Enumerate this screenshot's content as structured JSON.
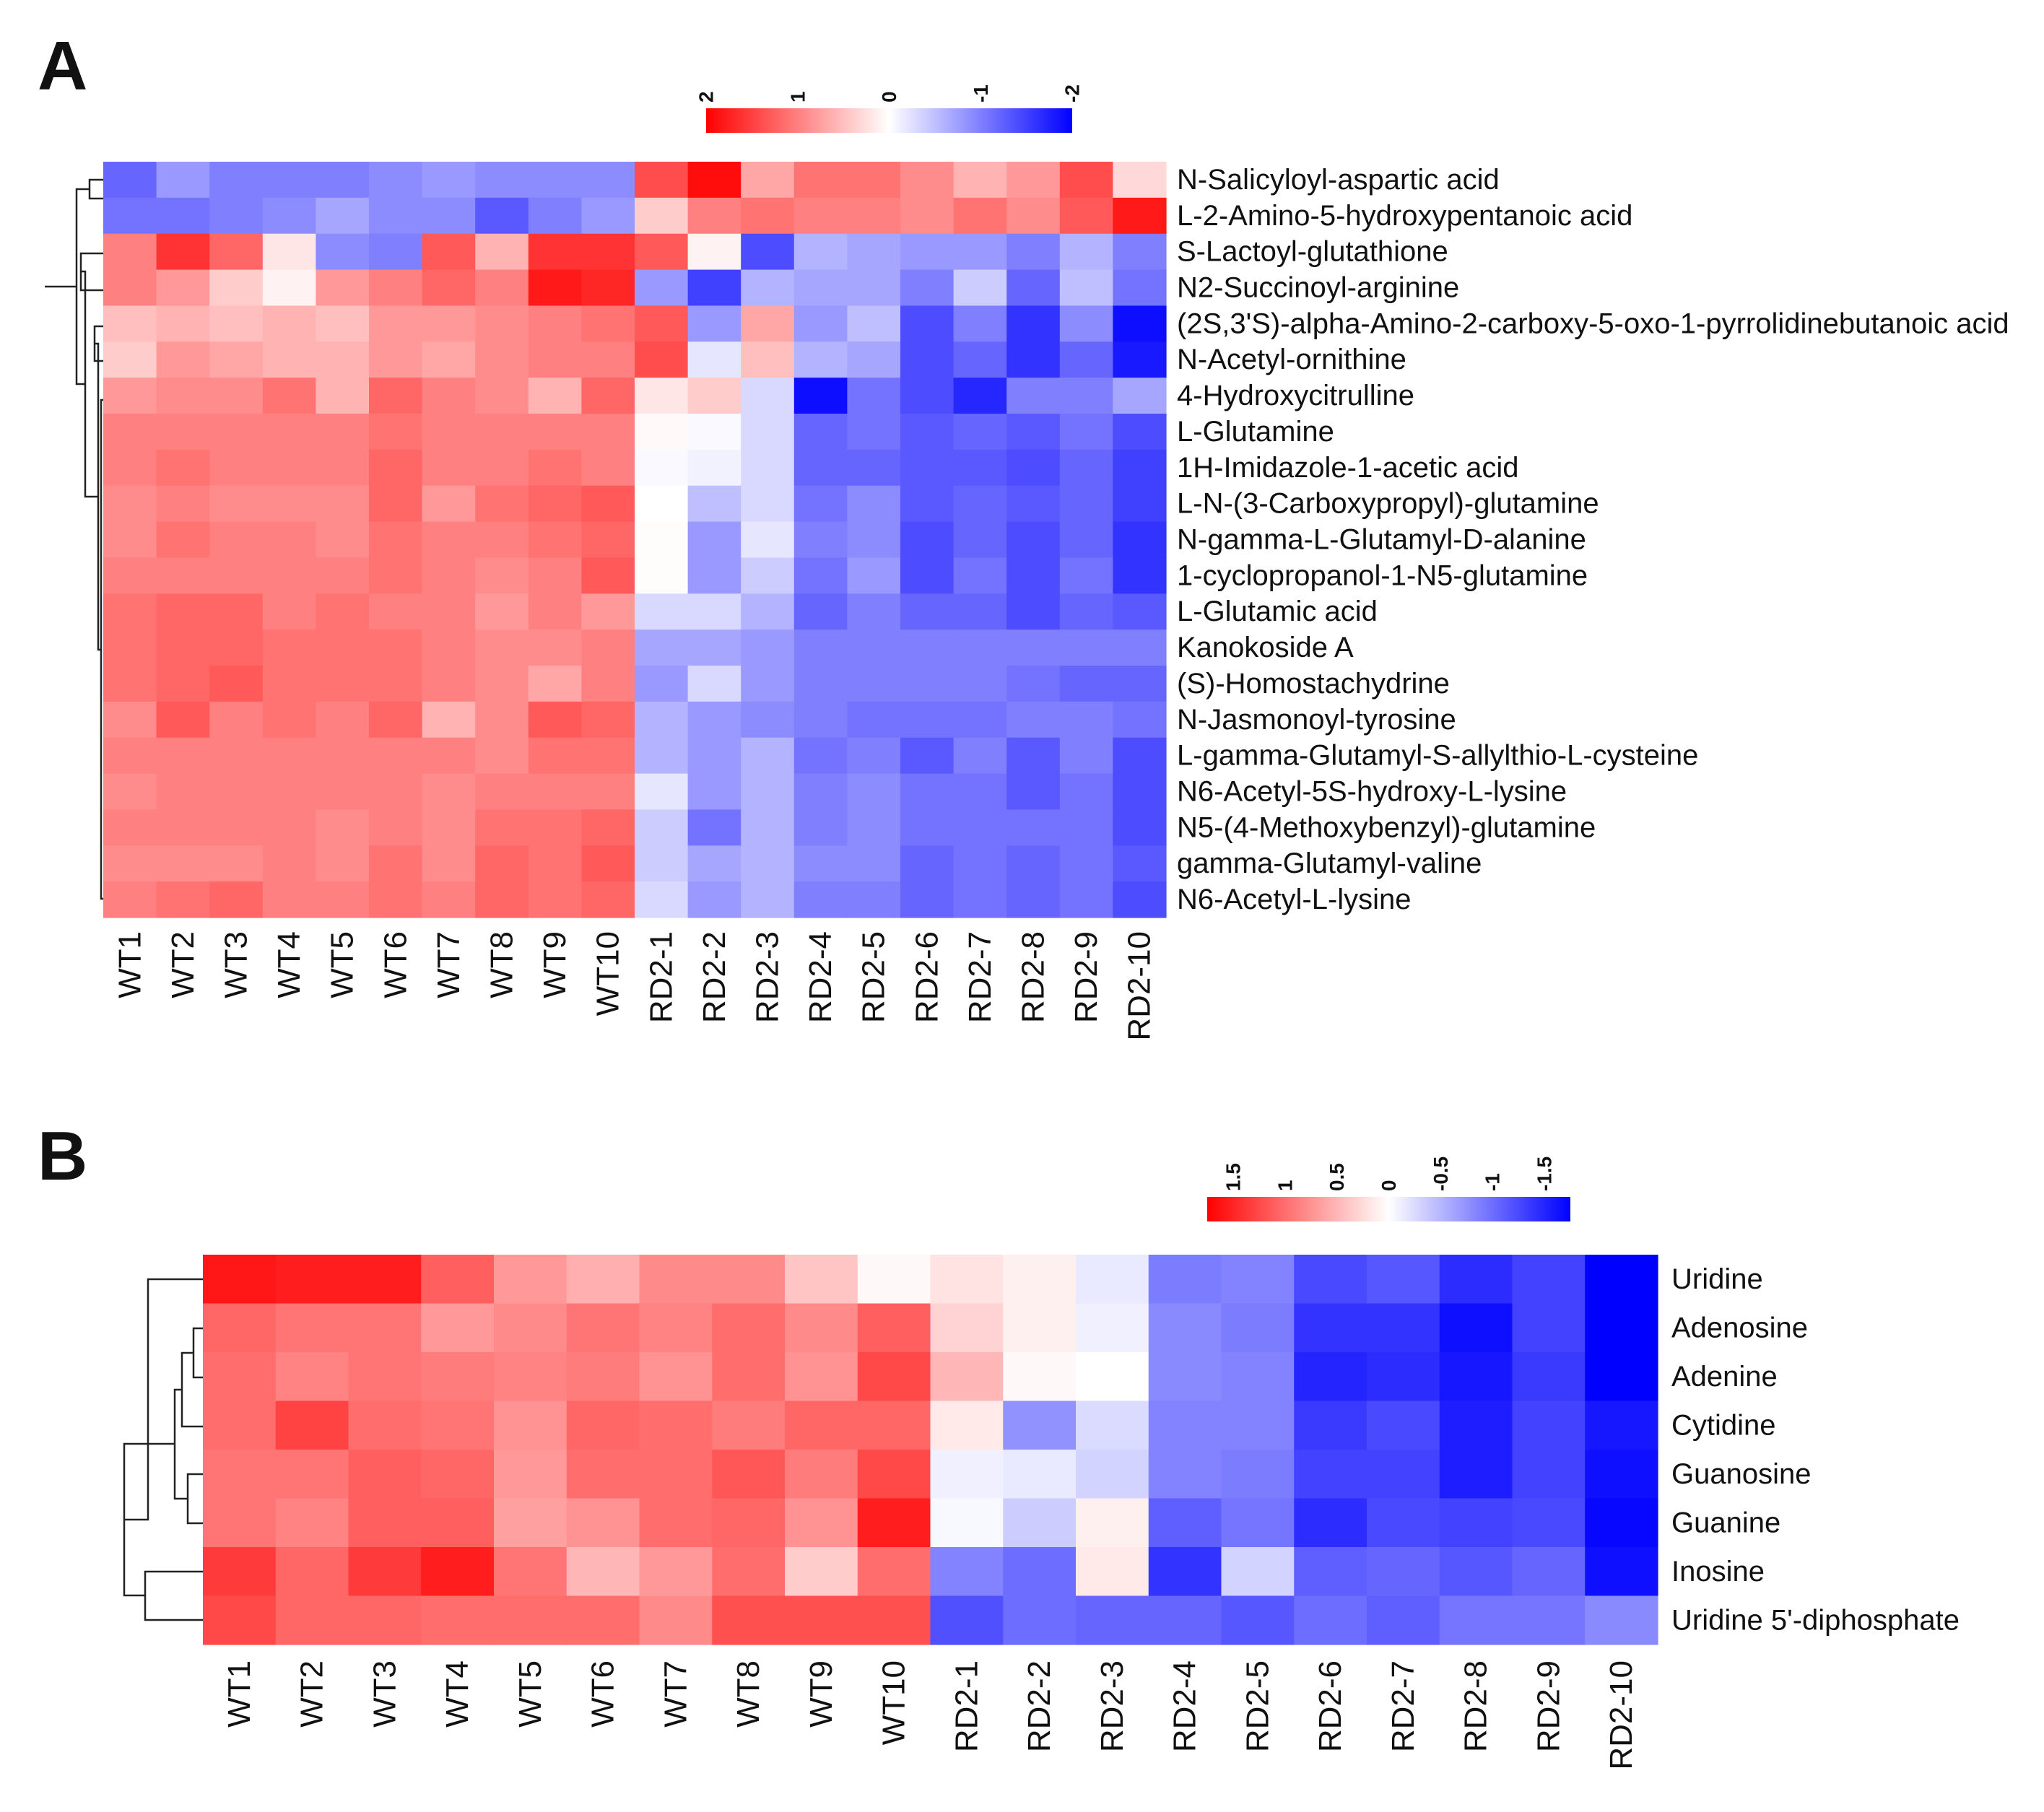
{
  "chart_data": [
    {
      "type": "heatmap",
      "panel": "A",
      "title": "",
      "xlabel": "",
      "ylabel": "",
      "color_scale": {
        "ticks": [
          "2",
          "1",
          "0",
          "-1",
          "-2"
        ],
        "range": [
          2,
          -2
        ],
        "colors": {
          "high": "#ff0000",
          "mid": "#ffffff",
          "low": "#0000ff"
        }
      },
      "columns": [
        "WT1",
        "WT2",
        "WT3",
        "WT4",
        "WT5",
        "WT6",
        "WT7",
        "WT8",
        "WT9",
        "WT10",
        "RD2-1",
        "RD2-2",
        "RD2-3",
        "RD2-4",
        "RD2-5",
        "RD2-6",
        "RD2-7",
        "RD2-8",
        "RD2-9",
        "RD2-10"
      ],
      "rows": [
        "N-Salicyloyl-aspartic acid",
        "L-2-Amino-5-hydroxypentanoic acid",
        "S-Lactoyl-glutathione",
        "N2-Succinoyl-arginine",
        "(2S,3'S)-alpha-Amino-2-carboxy-5-oxo-1-pyrrolidinebutanoic acid",
        "N-Acetyl-ornithine",
        "4-Hydroxycitrulline",
        "L-Glutamine",
        "1H-Imidazole-1-acetic acid",
        "L-N-(3-Carboxypropyl)-glutamine",
        "N-gamma-L-Glutamyl-D-alanine",
        "1-cyclopropanol-1-N5-glutamine",
        "L-Glutamic acid",
        "Kanokoside A",
        "(S)-Homostachydrine",
        "N-Jasmonoyl-tyrosine",
        "L-gamma-Glutamyl-S-allylthio-L-cysteine",
        "N6-Acetyl-5S-hydroxy-L-lysine",
        "N5-(4-Methoxybenzyl)-glutamine",
        "gamma-Glutamyl-valine",
        "N6-Acetyl-L-lysine"
      ],
      "values": [
        [
          -1.2,
          -0.8,
          -1.0,
          -1.0,
          -1.0,
          -0.9,
          -0.8,
          -0.9,
          -0.9,
          -0.9,
          1.4,
          1.9,
          0.7,
          1.1,
          1.1,
          0.9,
          0.6,
          0.8,
          1.4,
          0.3
        ],
        [
          -1.1,
          -1.1,
          -1.0,
          -0.9,
          -0.7,
          -0.9,
          -0.9,
          -1.3,
          -1.0,
          -0.8,
          0.4,
          1.0,
          1.1,
          1.0,
          1.0,
          0.9,
          1.1,
          0.9,
          1.3,
          1.8
        ],
        [
          1.0,
          1.6,
          1.2,
          0.2,
          -0.9,
          -1.0,
          1.3,
          0.6,
          1.6,
          1.6,
          1.3,
          0.1,
          -1.4,
          -0.6,
          -0.7,
          -0.8,
          -0.8,
          -1.0,
          -0.6,
          -1.0
        ],
        [
          1.0,
          0.8,
          0.4,
          0.1,
          0.8,
          1.0,
          1.2,
          1.0,
          1.8,
          1.7,
          -0.8,
          -1.5,
          -0.6,
          -0.7,
          -0.7,
          -1.0,
          -0.4,
          -1.2,
          -0.5,
          -1.1
        ],
        [
          0.5,
          0.6,
          0.5,
          0.6,
          0.5,
          0.8,
          0.8,
          0.9,
          1.0,
          1.1,
          1.3,
          -0.8,
          0.7,
          -0.8,
          -0.5,
          -1.4,
          -1.0,
          -1.6,
          -0.9,
          -1.9
        ],
        [
          0.4,
          0.8,
          0.7,
          0.6,
          0.6,
          0.8,
          0.7,
          0.9,
          1.0,
          1.0,
          1.4,
          -0.2,
          0.5,
          -0.6,
          -0.7,
          -1.4,
          -1.2,
          -1.6,
          -1.2,
          -1.8
        ],
        [
          0.8,
          0.9,
          0.9,
          1.1,
          0.6,
          1.2,
          1.0,
          0.9,
          0.6,
          1.2,
          0.2,
          0.4,
          -0.3,
          -1.9,
          -1.1,
          -1.4,
          -1.7,
          -1.0,
          -1.0,
          -0.7
        ],
        [
          1.0,
          1.0,
          1.0,
          1.0,
          1.0,
          1.1,
          1.0,
          1.0,
          1.0,
          1.0,
          0.05,
          -0.05,
          -0.3,
          -1.2,
          -1.1,
          -1.3,
          -1.2,
          -1.3,
          -1.1,
          -1.4
        ],
        [
          1.0,
          1.1,
          1.0,
          1.0,
          1.0,
          1.2,
          1.0,
          1.0,
          1.1,
          1.0,
          -0.05,
          -0.1,
          -0.3,
          -1.2,
          -1.2,
          -1.3,
          -1.3,
          -1.4,
          -1.2,
          -1.5
        ],
        [
          0.9,
          1.0,
          0.9,
          0.9,
          0.9,
          1.2,
          0.8,
          1.1,
          1.2,
          1.3,
          0.0,
          -0.5,
          -0.3,
          -1.1,
          -0.9,
          -1.3,
          -1.2,
          -1.3,
          -1.2,
          -1.5
        ],
        [
          0.9,
          1.1,
          1.0,
          1.0,
          0.9,
          1.1,
          1.0,
          1.0,
          1.1,
          1.2,
          0.02,
          -0.8,
          -0.2,
          -1.0,
          -0.9,
          -1.4,
          -1.2,
          -1.4,
          -1.2,
          -1.6
        ],
        [
          1.0,
          1.0,
          1.0,
          1.0,
          1.0,
          1.1,
          1.0,
          0.9,
          1.0,
          1.3,
          0.02,
          -0.8,
          -0.4,
          -1.1,
          -0.8,
          -1.4,
          -1.1,
          -1.4,
          -1.1,
          -1.6
        ],
        [
          1.1,
          1.2,
          1.2,
          1.0,
          1.1,
          1.0,
          1.0,
          0.8,
          1.0,
          0.8,
          -0.3,
          -0.3,
          -0.6,
          -1.2,
          -1.0,
          -1.2,
          -1.2,
          -1.4,
          -1.2,
          -1.3
        ],
        [
          1.1,
          1.2,
          1.2,
          1.1,
          1.1,
          1.1,
          1.0,
          0.9,
          0.9,
          1.0,
          -0.7,
          -0.7,
          -0.8,
          -1.0,
          -1.0,
          -1.0,
          -1.0,
          -1.0,
          -1.0,
          -1.0
        ],
        [
          1.1,
          1.2,
          1.3,
          1.1,
          1.1,
          1.1,
          1.0,
          0.9,
          0.7,
          1.0,
          -0.8,
          -0.3,
          -0.8,
          -1.0,
          -1.0,
          -1.0,
          -1.0,
          -1.1,
          -1.2,
          -1.2
        ],
        [
          0.9,
          1.3,
          1.0,
          1.1,
          1.0,
          1.2,
          0.6,
          0.9,
          1.3,
          1.2,
          -0.6,
          -0.8,
          -0.9,
          -1.0,
          -1.1,
          -1.1,
          -1.1,
          -1.0,
          -1.0,
          -1.1
        ],
        [
          1.0,
          1.0,
          1.0,
          1.0,
          1.0,
          1.0,
          1.0,
          0.9,
          1.1,
          1.1,
          -0.6,
          -0.8,
          -0.6,
          -1.1,
          -1.0,
          -1.3,
          -1.0,
          -1.3,
          -1.0,
          -1.4
        ],
        [
          0.9,
          1.0,
          1.0,
          1.0,
          1.0,
          1.0,
          0.9,
          1.0,
          1.0,
          1.0,
          -0.2,
          -0.8,
          -0.6,
          -1.0,
          -0.9,
          -1.1,
          -1.1,
          -1.3,
          -1.1,
          -1.4
        ],
        [
          1.0,
          1.0,
          1.0,
          1.0,
          0.9,
          1.0,
          0.9,
          1.1,
          1.1,
          1.2,
          -0.4,
          -1.1,
          -0.6,
          -1.0,
          -0.9,
          -1.1,
          -1.1,
          -1.1,
          -1.1,
          -1.4
        ],
        [
          0.9,
          0.9,
          0.9,
          1.0,
          0.9,
          1.1,
          0.9,
          1.2,
          1.1,
          1.3,
          -0.4,
          -0.7,
          -0.6,
          -0.9,
          -0.9,
          -1.2,
          -1.1,
          -1.2,
          -1.1,
          -1.3
        ],
        [
          1.0,
          1.1,
          1.2,
          1.0,
          1.0,
          1.1,
          1.0,
          1.2,
          1.1,
          1.2,
          -0.3,
          -0.8,
          -0.6,
          -1.0,
          -1.0,
          -1.2,
          -1.1,
          -1.2,
          -1.1,
          -1.4
        ]
      ]
    },
    {
      "type": "heatmap",
      "panel": "B",
      "title": "",
      "xlabel": "",
      "ylabel": "",
      "color_scale": {
        "ticks": [
          "1.5",
          "1",
          "0.5",
          "0",
          "-0.5",
          "-1",
          "-1.5"
        ],
        "range": [
          1.75,
          -1.75
        ],
        "colors": {
          "high": "#ff0000",
          "mid": "#ffffff",
          "low": "#0000ff"
        }
      },
      "columns": [
        "WT1",
        "WT2",
        "WT3",
        "WT4",
        "WT5",
        "WT6",
        "WT7",
        "WT8",
        "WT9",
        "WT10",
        "RD2-1",
        "RD2-2",
        "RD2-3",
        "RD2-4",
        "RD2-5",
        "RD2-6",
        "RD2-7",
        "RD2-8",
        "RD2-9",
        "RD2-10"
      ],
      "rows": [
        "Uridine",
        "Adenosine",
        "Adenine",
        "Cytidine",
        "Guanosine",
        "Guanine",
        "Inosine",
        "Uridine 5'-diphosphate"
      ],
      "values": [
        [
          1.6,
          1.55,
          1.55,
          1.1,
          0.7,
          0.55,
          0.8,
          0.8,
          0.4,
          0.05,
          0.2,
          0.1,
          -0.15,
          -0.9,
          -0.85,
          -1.25,
          -1.15,
          -1.45,
          -1.3,
          -1.75
        ],
        [
          1.05,
          0.95,
          0.95,
          0.7,
          0.8,
          0.95,
          0.85,
          1.0,
          0.8,
          1.1,
          0.3,
          0.1,
          -0.1,
          -0.8,
          -0.9,
          -1.4,
          -1.4,
          -1.65,
          -1.3,
          -1.75
        ],
        [
          1.0,
          0.85,
          0.95,
          0.9,
          0.85,
          0.9,
          0.75,
          1.0,
          0.75,
          1.25,
          0.5,
          0.05,
          0.0,
          -0.8,
          -0.85,
          -1.5,
          -1.45,
          -1.6,
          -1.35,
          -1.75
        ],
        [
          1.0,
          1.3,
          1.0,
          0.95,
          0.75,
          1.05,
          1.0,
          0.9,
          1.05,
          1.05,
          0.15,
          -0.75,
          -0.25,
          -0.85,
          -0.85,
          -1.35,
          -1.25,
          -1.55,
          -1.3,
          -1.6
        ],
        [
          0.95,
          0.95,
          1.1,
          1.05,
          0.7,
          1.0,
          1.0,
          1.15,
          0.9,
          1.25,
          -0.1,
          -0.15,
          -0.3,
          -0.85,
          -0.9,
          -1.3,
          -1.3,
          -1.55,
          -1.3,
          -1.65
        ],
        [
          0.95,
          0.85,
          1.1,
          1.1,
          0.65,
          0.75,
          1.0,
          1.05,
          0.75,
          1.55,
          -0.05,
          -0.35,
          0.1,
          -1.1,
          -0.95,
          -1.45,
          -1.25,
          -1.3,
          -1.25,
          -1.7
        ],
        [
          1.35,
          1.05,
          1.35,
          1.55,
          0.95,
          0.5,
          0.7,
          1.0,
          0.35,
          1.0,
          -0.85,
          -1.0,
          0.15,
          -1.4,
          -0.3,
          -1.1,
          -1.05,
          -1.15,
          -1.05,
          -1.65
        ],
        [
          1.25,
          1.05,
          1.05,
          1.0,
          1.0,
          1.0,
          0.8,
          1.2,
          1.2,
          1.2,
          -1.2,
          -1.0,
          -1.05,
          -1.05,
          -1.15,
          -1.0,
          -1.1,
          -0.95,
          -0.95,
          -0.8
        ]
      ]
    }
  ]
}
